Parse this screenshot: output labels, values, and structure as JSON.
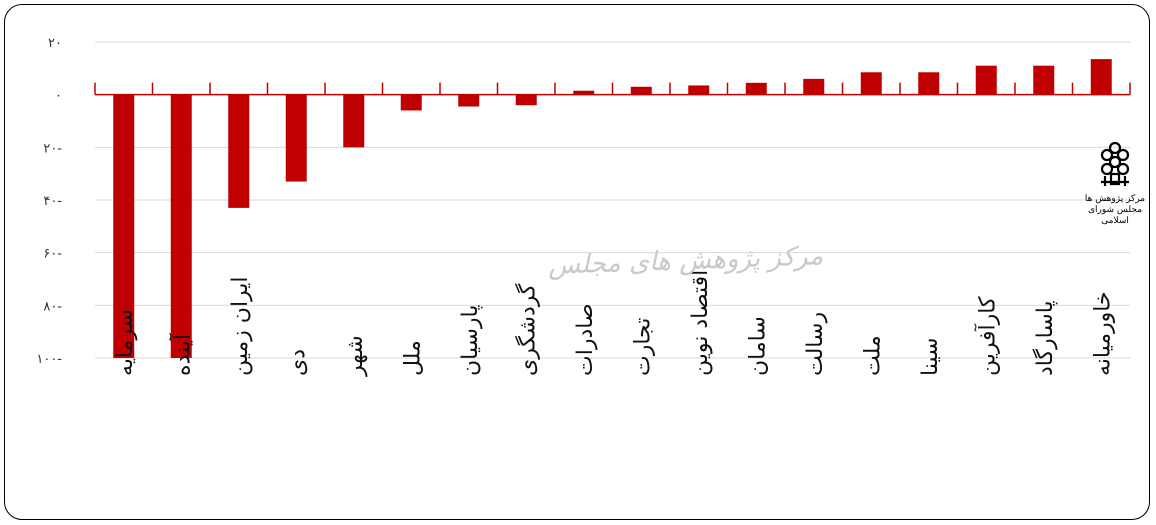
{
  "title": "",
  "watermark": "مرکز پژوهش های مجلس",
  "logo": {
    "line1": "مرکز پژوهش ها",
    "line2": "مجلس شورای اسلامی"
  },
  "colors": {
    "bar": "#c00000",
    "grid": "#d9d9d9",
    "axis": "#c00000"
  },
  "chart_data": {
    "type": "bar",
    "categories": [
      "سرمایه",
      "آینده",
      "ایران زمین",
      "دی",
      "شهر",
      "ملل",
      "پارسیان",
      "گردشگری",
      "صادرات",
      "تجارت",
      "اقتصاد نوین",
      "سامان",
      "رسالت",
      "ملت",
      "سینا",
      "کارآفرین",
      "پاسارگاد",
      "خاورمیانه"
    ],
    "values": [
      -100,
      -100,
      -43,
      -33,
      -20,
      -6,
      -4.5,
      -4,
      1.5,
      3,
      3.5,
      4.5,
      6,
      8.5,
      8.5,
      11,
      11,
      13.5
    ],
    "ylim": [
      -100,
      20
    ],
    "yticks": [
      20,
      0,
      -20,
      -40,
      -60,
      -80,
      -100
    ],
    "ytick_labels": [
      "۲۰",
      "۰",
      "۲۰-",
      "۴۰-",
      "۶۰-",
      "۸۰-",
      "۱۰۰-"
    ],
    "grid": true,
    "legend": "none",
    "xlabel": "",
    "ylabel": ""
  }
}
